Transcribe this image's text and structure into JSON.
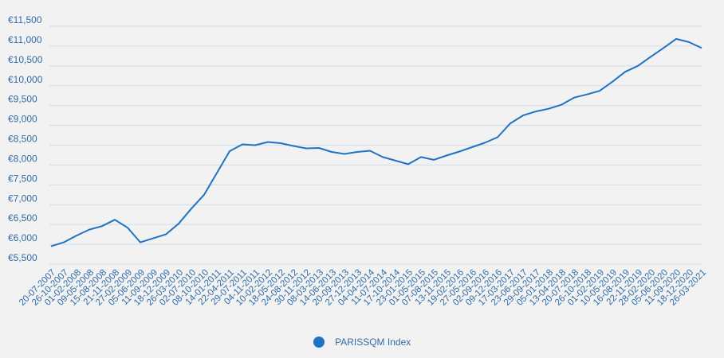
{
  "chart_data": {
    "type": "line",
    "title": "",
    "xlabel": "",
    "ylabel": "",
    "y_tick_labels": [
      "€5,500",
      "€6,000",
      "€6,500",
      "€7,000",
      "€7,500",
      "€8,000",
      "€8,500",
      "€9,000",
      "€9,500",
      "€10,000",
      "€10,500",
      "€11,000",
      "€11,500"
    ],
    "y_tick_values": [
      5500,
      6000,
      6500,
      7000,
      7500,
      8000,
      8500,
      9000,
      9500,
      10000,
      10500,
      11000,
      11500
    ],
    "ylim": [
      5500,
      11500
    ],
    "x_tick_labels": [
      "20-07-2007",
      "26-10-2007",
      "01-02-2008",
      "09-05-2008",
      "15-08-2008",
      "21-11-2008",
      "27-02-2009",
      "05-06-2009",
      "11-09-2009",
      "18-12-2009",
      "26-03-2010",
      "02-07-2010",
      "08-10-2010",
      "14-01-2011",
      "22-04-2011",
      "29-07-2011",
      "04-11-2011",
      "10-02-2012",
      "18-05-2012",
      "24-08-2012",
      "30-11-2012",
      "08-03-2013",
      "14-06-2013",
      "20-09-2013",
      "27-12-2013",
      "04-04-2014",
      "11-07-2014",
      "17-10-2014",
      "23-01-2015",
      "01-05-2015",
      "07-08-2015",
      "13-11-2015",
      "19-02-2016",
      "27-05-2016",
      "02-09-2016",
      "09-12-2016",
      "17-03-2017",
      "23-06-2017",
      "29-09-2017",
      "05-01-2018",
      "13-04-2018",
      "20-07-2018",
      "26-10-2018",
      "01-02-2019",
      "10-05-2019",
      "16-08-2019",
      "22-11-2019",
      "28-02-2020",
      "05-06-2020",
      "11-09-2020",
      "18-12-2020",
      "26-03-2021"
    ],
    "grid": true,
    "legend_position": "bottom",
    "series": [
      {
        "name": "PARISSQM Index",
        "color": "#1f73c2",
        "points": [
          [
            0,
            5950
          ],
          [
            1,
            6050
          ],
          [
            2,
            6220
          ],
          [
            3,
            6370
          ],
          [
            4,
            6460
          ],
          [
            5,
            6620
          ],
          [
            6,
            6420
          ],
          [
            7,
            6050
          ],
          [
            8,
            6150
          ],
          [
            9,
            6250
          ],
          [
            10,
            6520
          ],
          [
            11,
            6900
          ],
          [
            12,
            7250
          ],
          [
            13,
            7800
          ],
          [
            14,
            8350
          ],
          [
            15,
            8520
          ],
          [
            16,
            8500
          ],
          [
            17,
            8580
          ],
          [
            18,
            8550
          ],
          [
            19,
            8480
          ],
          [
            20,
            8420
          ],
          [
            21,
            8430
          ],
          [
            22,
            8330
          ],
          [
            23,
            8280
          ],
          [
            24,
            8330
          ],
          [
            25,
            8360
          ],
          [
            26,
            8200
          ],
          [
            27,
            8110
          ],
          [
            28,
            8020
          ],
          [
            29,
            8200
          ],
          [
            30,
            8130
          ],
          [
            31,
            8240
          ],
          [
            32,
            8340
          ],
          [
            33,
            8450
          ],
          [
            34,
            8560
          ],
          [
            35,
            8700
          ],
          [
            36,
            9050
          ],
          [
            37,
            9250
          ],
          [
            38,
            9350
          ],
          [
            39,
            9420
          ],
          [
            40,
            9520
          ],
          [
            41,
            9700
          ],
          [
            42,
            9780
          ],
          [
            43,
            9870
          ],
          [
            44,
            10100
          ],
          [
            45,
            10350
          ],
          [
            46,
            10500
          ],
          [
            47,
            10730
          ],
          [
            48,
            10950
          ],
          [
            49,
            11180
          ],
          [
            50,
            11100
          ],
          [
            51,
            10950
          ]
        ]
      }
    ]
  }
}
